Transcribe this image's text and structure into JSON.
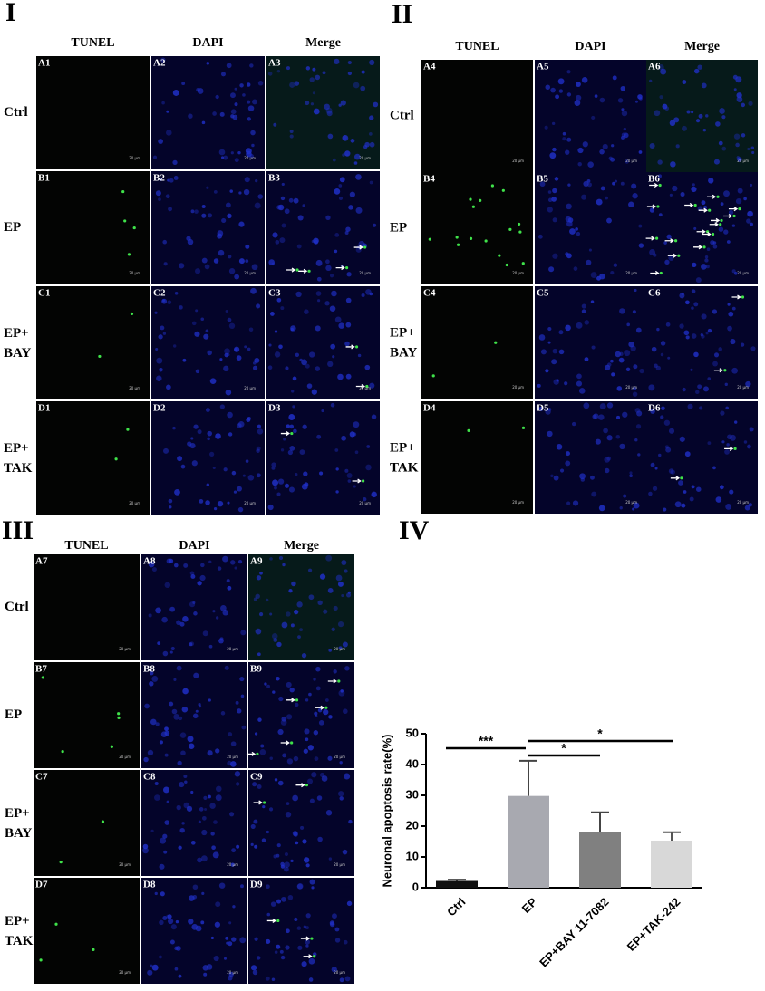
{
  "sections": [
    {
      "title": "I",
      "columns": [
        "TUNEL",
        "DAPI",
        "Merge"
      ],
      "rows": [
        {
          "label": [
            "Ctrl"
          ],
          "panels": [
            "A1",
            "A2",
            "A3"
          ]
        },
        {
          "label": [
            "EP"
          ],
          "panels": [
            "B1",
            "B2",
            "B3"
          ]
        },
        {
          "label": [
            "EP+",
            "BAY"
          ],
          "panels": [
            "C1",
            "C2",
            "C3"
          ]
        },
        {
          "label": [
            "EP+",
            "TAK"
          ],
          "panels": [
            "D1",
            "D2",
            "D3"
          ]
        }
      ]
    },
    {
      "title": "II",
      "columns": [
        "TUNEL",
        "DAPI",
        "Merge"
      ],
      "rows": [
        {
          "label": [
            "Ctrl"
          ],
          "panels": [
            "A4",
            "A5",
            "A6"
          ]
        },
        {
          "label": [
            "EP"
          ],
          "panels": [
            "B4",
            "B5",
            "B6"
          ]
        },
        {
          "label": [
            "EP+",
            "BAY"
          ],
          "panels": [
            "C4",
            "C5",
            "C6"
          ]
        },
        {
          "label": [
            "EP+",
            "TAK"
          ],
          "panels": [
            "D4",
            "D5",
            "D6"
          ]
        }
      ]
    },
    {
      "title": "III",
      "columns": [
        "TUNEL",
        "DAPI",
        "Merge"
      ],
      "rows": [
        {
          "label": [
            "Ctrl"
          ],
          "panels": [
            "A7",
            "A8",
            "A9"
          ]
        },
        {
          "label": [
            "EP"
          ],
          "panels": [
            "B7",
            "B8",
            "B9"
          ]
        },
        {
          "label": [
            "EP+",
            "BAY"
          ],
          "panels": [
            "C7",
            "C8",
            "C9"
          ]
        },
        {
          "label": [
            "EP+",
            "TAK"
          ],
          "panels": [
            "D7",
            "D8",
            "D9"
          ]
        }
      ]
    }
  ],
  "scale_bar": "20 μm",
  "chart_title": "IV",
  "chart_data": {
    "type": "bar",
    "ylabel": "Neuronal apoptosis rate(%)",
    "categories": [
      "Ctrl",
      "EP",
      "EP+BAY 11-7082",
      "EP+TAK-242"
    ],
    "values": [
      2.2,
      29.8,
      18,
      15.3
    ],
    "errors": [
      0.4,
      11.4,
      6.5,
      2.7
    ],
    "colors": [
      "#111111",
      "#a8a9b0",
      "#808080",
      "#d8d8d8"
    ],
    "ylim": [
      0,
      50
    ],
    "yticks": [
      0,
      10,
      20,
      30,
      40,
      50
    ],
    "significance": [
      "***",
      "*",
      "*"
    ]
  }
}
